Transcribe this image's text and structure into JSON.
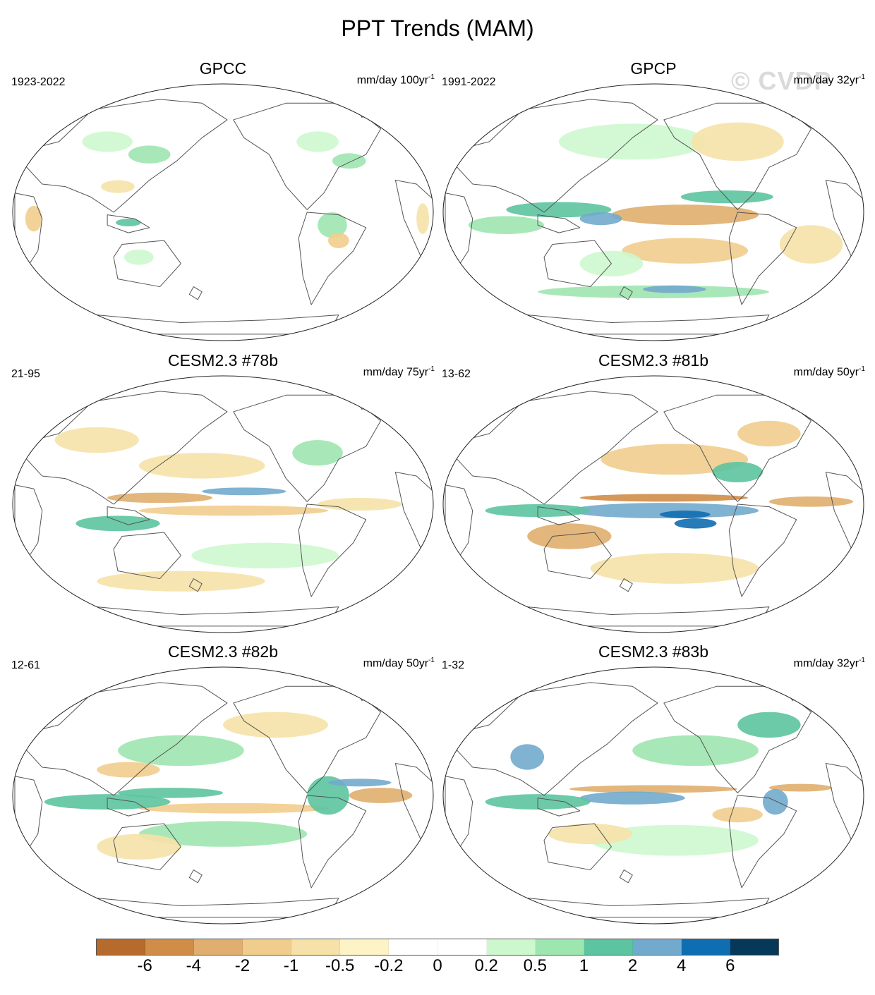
{
  "figure": {
    "title": "PPT Trends (MAM)",
    "watermark": "© CVDP"
  },
  "colors": {
    "land_outline": "#555555",
    "ellipse_outline": "#222222",
    "brown_6": "#b66a2c",
    "brown_4": "#cf8d48",
    "brown_2": "#e0ae6e",
    "brown_1": "#f1cd8d",
    "brown_05": "#f6e2a8",
    "brown_02": "#fdf3c6",
    "white": "#ffffff",
    "green_02": "#cdf8ce",
    "green_05": "#9ee6b0",
    "green_1": "#5cc4a0",
    "blue_2": "#72aacd",
    "blue_4": "#0f6db1",
    "navy_6": "#06385a"
  },
  "panels": [
    {
      "title": "GPCC",
      "period": "1923-2022",
      "units": "mm/day 100yr",
      "units_exp": "-1"
    },
    {
      "title": "GPCP",
      "period": "1991-2022",
      "units": "mm/day 32yr",
      "units_exp": "-1"
    },
    {
      "title": "CESM2.3 #78b",
      "period": "21-95",
      "units": "mm/day 75yr",
      "units_exp": "-1"
    },
    {
      "title": "CESM2.3 #81b",
      "period": "13-62",
      "units": "mm/day 50yr",
      "units_exp": "-1"
    },
    {
      "title": "CESM2.3 #82b",
      "period": "12-61",
      "units": "mm/day 50yr",
      "units_exp": "-1"
    },
    {
      "title": "CESM2.3 #83b",
      "period": "1-32",
      "units": "mm/day 32yr",
      "units_exp": "-1"
    }
  ],
  "colorbar": {
    "colors": [
      "#b66a2c",
      "#cf8d48",
      "#e0ae6e",
      "#f1cd8d",
      "#f6e2a8",
      "#fdf3c6",
      "#ffffff",
      "#ffffff",
      "#cdf8ce",
      "#9ee6b0",
      "#5cc4a0",
      "#72aacd",
      "#0f6db1",
      "#06385a"
    ],
    "labels": [
      "-6",
      "-4",
      "-2",
      "-1",
      "-0.5",
      "-0.2",
      "0",
      "0.2",
      "0.5",
      "1",
      "2",
      "4",
      "6"
    ]
  }
}
